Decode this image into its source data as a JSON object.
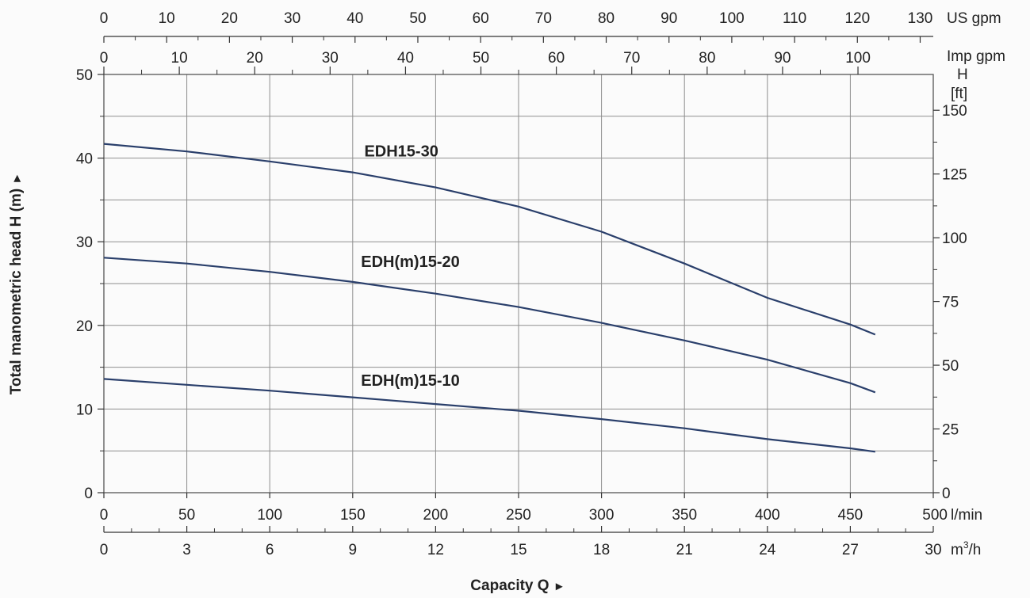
{
  "chart_data": {
    "type": "line",
    "x_label": "Capacity Q",
    "x_arrow": "►",
    "y_label": "Total manometric head H (m)",
    "y_arrow": "►",
    "xlim": [
      0,
      500
    ],
    "ylim": [
      0,
      50
    ],
    "grid": true,
    "x_axis_lpm": {
      "unit": "l/min",
      "ticks": [
        0,
        50,
        100,
        150,
        200,
        250,
        300,
        350,
        400,
        450,
        500
      ],
      "tick_labels": [
        "0",
        "50",
        "100",
        "150",
        "200",
        "250",
        "300",
        "350",
        "400",
        "450",
        "500"
      ]
    },
    "x_axis_m3h": {
      "unit_prefix": "m",
      "unit_sup": "3",
      "unit_suffix": "/h",
      "ticks": [
        0,
        3,
        6,
        9,
        12,
        15,
        18,
        21,
        24,
        27,
        30
      ],
      "tick_labels": [
        "0",
        "3",
        "6",
        "9",
        "12",
        "15",
        "18",
        "21",
        "24",
        "27",
        "30"
      ]
    },
    "x_axis_us_gpm": {
      "unit": "US gpm",
      "ticks": [
        0,
        10,
        20,
        30,
        40,
        50,
        60,
        70,
        80,
        90,
        100,
        110,
        120,
        130
      ],
      "tick_labels": [
        "0",
        "10",
        "20",
        "30",
        "40",
        "50",
        "60",
        "70",
        "80",
        "90",
        "100",
        "110",
        "120",
        "130"
      ]
    },
    "x_axis_imp_gpm": {
      "unit": "Imp gpm",
      "ticks": [
        0,
        10,
        20,
        30,
        40,
        50,
        60,
        70,
        80,
        90,
        100
      ],
      "tick_labels": [
        "0",
        "10",
        "20",
        "30",
        "40",
        "50",
        "60",
        "70",
        "80",
        "90",
        "100"
      ]
    },
    "y_axis_m": {
      "ticks": [
        0,
        10,
        20,
        30,
        40,
        50
      ],
      "tick_labels": [
        "0",
        "10",
        "20",
        "30",
        "40",
        "50"
      ]
    },
    "y_axis_ft": {
      "unit_line1": "H",
      "unit_line2": "[ft]",
      "ticks": [
        0,
        25,
        50,
        75,
        100,
        125,
        150
      ],
      "tick_labels": [
        "0",
        "25",
        "50",
        "75",
        "100",
        "125",
        "150"
      ]
    },
    "series": [
      {
        "name": "EDH15-30",
        "x": [
          0,
          50,
          100,
          150,
          200,
          250,
          300,
          350,
          400,
          450,
          465
        ],
        "y": [
          41.7,
          40.8,
          39.6,
          38.3,
          36.5,
          34.2,
          31.2,
          27.4,
          23.3,
          20.1,
          18.9
        ]
      },
      {
        "name": "EDH(m)15-20",
        "x": [
          0,
          50,
          100,
          150,
          200,
          250,
          300,
          350,
          400,
          450,
          465
        ],
        "y": [
          28.1,
          27.4,
          26.4,
          25.2,
          23.8,
          22.2,
          20.3,
          18.2,
          15.9,
          13.1,
          12.0
        ]
      },
      {
        "name": "EDH(m)15-10",
        "x": [
          0,
          50,
          100,
          150,
          200,
          250,
          300,
          350,
          400,
          450,
          465
        ],
        "y": [
          13.6,
          12.9,
          12.2,
          11.4,
          10.6,
          9.8,
          8.8,
          7.7,
          6.4,
          5.3,
          4.9
        ]
      }
    ],
    "curve_labels": [
      {
        "text": "EDH15-30",
        "x": 157,
        "y": 40.2
      },
      {
        "text": "EDH(m)15-20",
        "x": 155,
        "y": 27.0
      },
      {
        "text": "EDH(m)15-10",
        "x": 155,
        "y": 12.8
      }
    ],
    "line_color": "#2a3f6b"
  }
}
